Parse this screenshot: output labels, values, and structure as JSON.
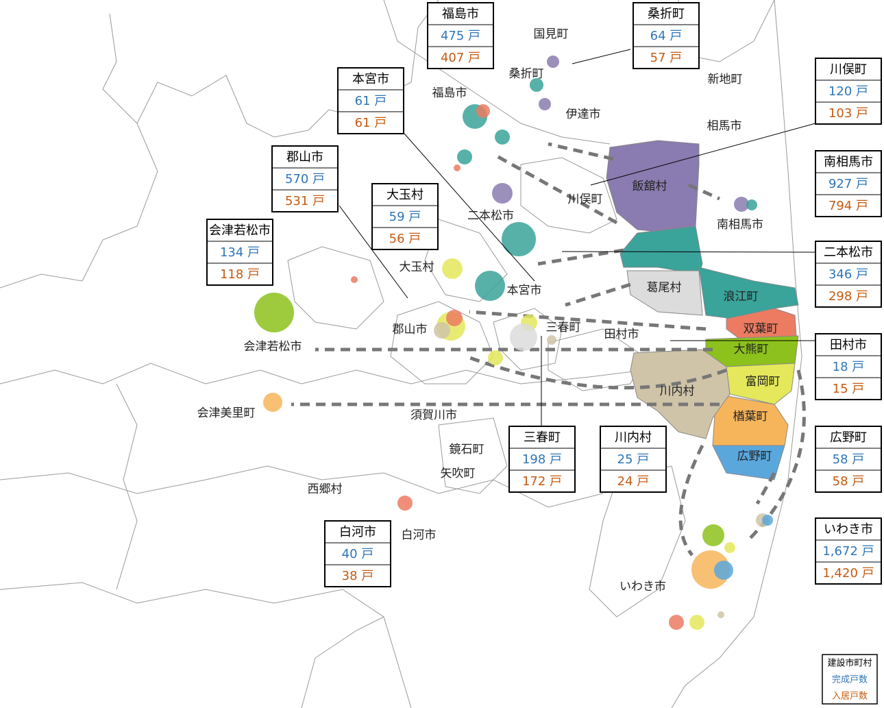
{
  "boxes": [
    {
      "name": "福島市",
      "completed": "475 戸",
      "occupied": "407 戸"
    },
    {
      "name": "桑折町",
      "completed": "64 戸",
      "occupied": "57 戸"
    },
    {
      "name": "川俣町",
      "completed": "120 戸",
      "occupied": "103 戸"
    },
    {
      "name": "本宮市",
      "completed": "61 戸",
      "occupied": "61 戸"
    },
    {
      "name": "郡山市",
      "completed": "570 戸",
      "occupied": "531 戸"
    },
    {
      "name": "大玉村",
      "completed": "59 戸",
      "occupied": "56 戸"
    },
    {
      "name": "会津若松市",
      "completed": "134 戸",
      "occupied": "118 戸"
    },
    {
      "name": "南相馬市",
      "completed": "927 戸",
      "occupied": "794 戸"
    },
    {
      "name": "二本松市",
      "completed": "346 戸",
      "occupied": "298 戸"
    },
    {
      "name": "田村市",
      "completed": "18 戸",
      "occupied": "15 戸"
    },
    {
      "name": "広野町",
      "completed": "58 戸",
      "occupied": "58 戸"
    },
    {
      "name": "三春町",
      "completed": "198 戸",
      "occupied": "172 戸"
    },
    {
      "name": "川内村",
      "completed": "25 戸",
      "occupied": "24 戸"
    },
    {
      "name": "白河市",
      "completed": "40 戸",
      "occupied": "38 戸"
    },
    {
      "name": "いわき市",
      "completed": "1,672 戸",
      "occupied": "1,420 戸"
    }
  ],
  "places": [
    "国見町",
    "桑折町",
    "福島市",
    "伊達市",
    "新地町",
    "相馬市",
    "飯舘村",
    "川俣町",
    "南相馬市",
    "二本松市",
    "大玉村",
    "葛尾村",
    "浪江町",
    "本宮市",
    "三春町",
    "双葉町",
    "田村市",
    "郡山市",
    "大熊町",
    "会津若松市",
    "富岡町",
    "川内村",
    "楢葉町",
    "会津美里町",
    "須賀川市",
    "鏡石町",
    "広野町",
    "矢吹町",
    "西郷村",
    "白河市",
    "いわき市"
  ],
  "legend": {
    "title": "建設市町村",
    "completed": "完成戸数",
    "occupied": "入居戸数"
  }
}
